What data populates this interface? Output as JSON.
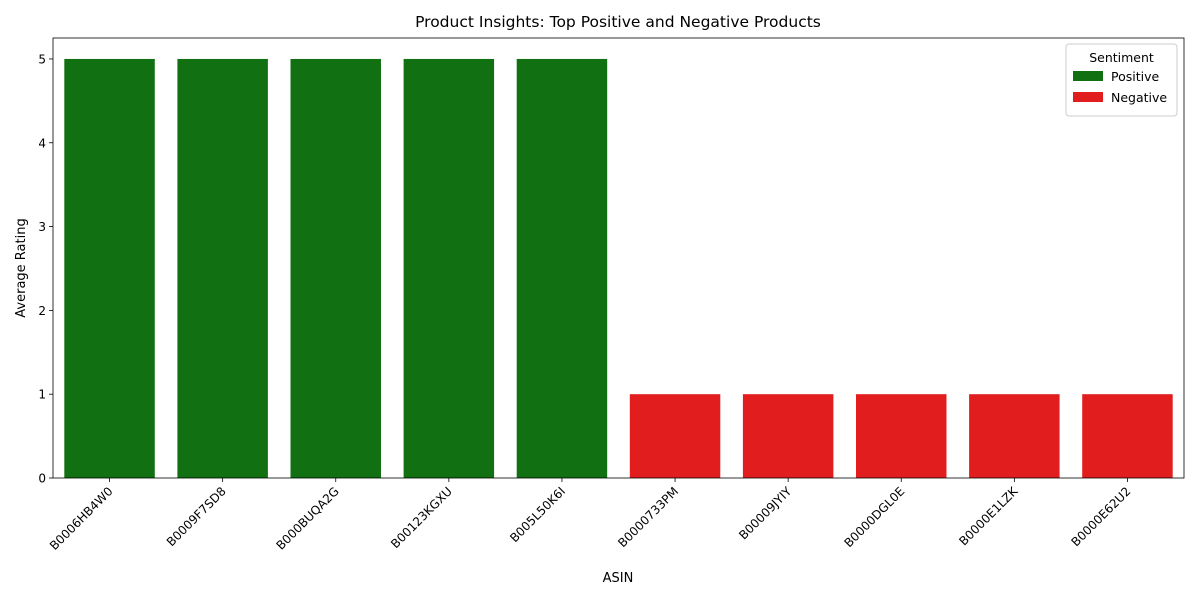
{
  "chart_data": {
    "type": "bar",
    "title": "Product Insights: Top Positive and Negative Products",
    "xlabel": "ASIN",
    "ylabel": "Average Rating",
    "ylim": [
      0,
      5.25
    ],
    "yticks": [
      "0",
      "1",
      "2",
      "3",
      "4",
      "5"
    ],
    "grid": false,
    "categories": [
      "B0006HB4W0",
      "B0009F7SD8",
      "B000BUQA2G",
      "B00123KGXU",
      "B005L50K6I",
      "B0000733PM",
      "B00009JYIY",
      "B0000DGL0E",
      "B0000E1LZK",
      "B0000E62U2"
    ],
    "values": [
      5,
      5,
      5,
      5,
      5,
      1,
      1,
      1,
      1,
      1
    ],
    "sentiment": [
      "Positive",
      "Positive",
      "Positive",
      "Positive",
      "Positive",
      "Negative",
      "Negative",
      "Negative",
      "Negative",
      "Negative"
    ],
    "legend": {
      "title": "Sentiment",
      "placement": "top-right",
      "entries": [
        {
          "label": "Positive",
          "color": "#117011"
        },
        {
          "label": "Negative",
          "color": "#e11d1d"
        }
      ]
    }
  }
}
